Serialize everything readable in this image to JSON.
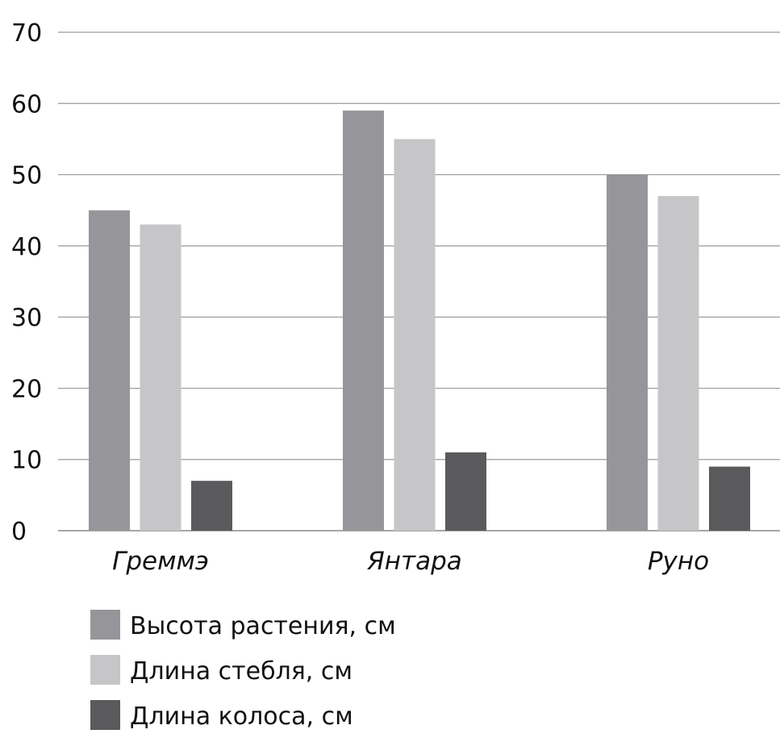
{
  "chart_data": {
    "type": "bar",
    "categories": [
      "Греммэ",
      "Янтара",
      "Руно"
    ],
    "series": [
      {
        "name": "Высота растения, см",
        "values": [
          45,
          59,
          50
        ],
        "color": "#96969a"
      },
      {
        "name": "Длина стебля, см",
        "values": [
          43,
          55,
          47
        ],
        "color": "#c6c6c8"
      },
      {
        "name": "Длина колоса, см",
        "values": [
          7,
          11,
          9
        ],
        "color": "#5a5a5d"
      }
    ],
    "title": "",
    "xlabel": "",
    "ylabel": "",
    "ylim": [
      0,
      70
    ],
    "yticks": [
      "0",
      "10",
      "20",
      "30",
      "40",
      "50",
      "60",
      "70"
    ],
    "grid": true,
    "legend_position": "bottom-left"
  }
}
